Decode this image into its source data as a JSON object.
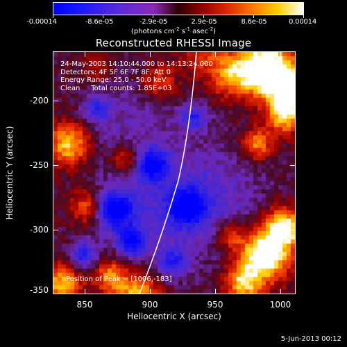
{
  "colorbar": {
    "tick_labels": [
      "-0.00014",
      "-8.6e-05",
      "-2.9e-05",
      "2.9e-05",
      "8.6e-05",
      "0.00014"
    ],
    "units_prefix": "(photons cm",
    "units_sup1": "-2",
    "units_mid": " s",
    "units_sup2": "-1",
    "units_suffix": " asec",
    "units_sup3": "-2",
    "units_end": ")",
    "colors": [
      "#0000ff",
      "#5a2bdc",
      "#8a2ab8",
      "#2a0000",
      "#e32a00",
      "#ff7a00",
      "#ffd000",
      "#ffffff"
    ]
  },
  "title": "Reconstructed RHESSI Image",
  "overlay": {
    "line1": "24-May-2003 14:10:44.000 to 14:13:24.000",
    "line2": "Detectors: 4F 5F 6F 7F 8F, Att 0",
    "line3": "Energy Range: 25.0 - 50.0 keV",
    "line4": "Clean     Total counts: 1.85E+03",
    "peak": "Position of Peak = [1006,-183]"
  },
  "axes": {
    "x_label": "Heliocentric X (arcsec)",
    "y_label": "Heliocentric Y (arcsec)",
    "x_range": [
      825,
      1012
    ],
    "y_range": [
      -353,
      -166
    ],
    "x_ticks": [
      "850",
      "900",
      "950",
      "1000"
    ],
    "y_ticks": [
      "-200",
      "-250",
      "-300",
      "-350"
    ]
  },
  "footer": {
    "date": "5-Jun-2013 00:12"
  }
}
